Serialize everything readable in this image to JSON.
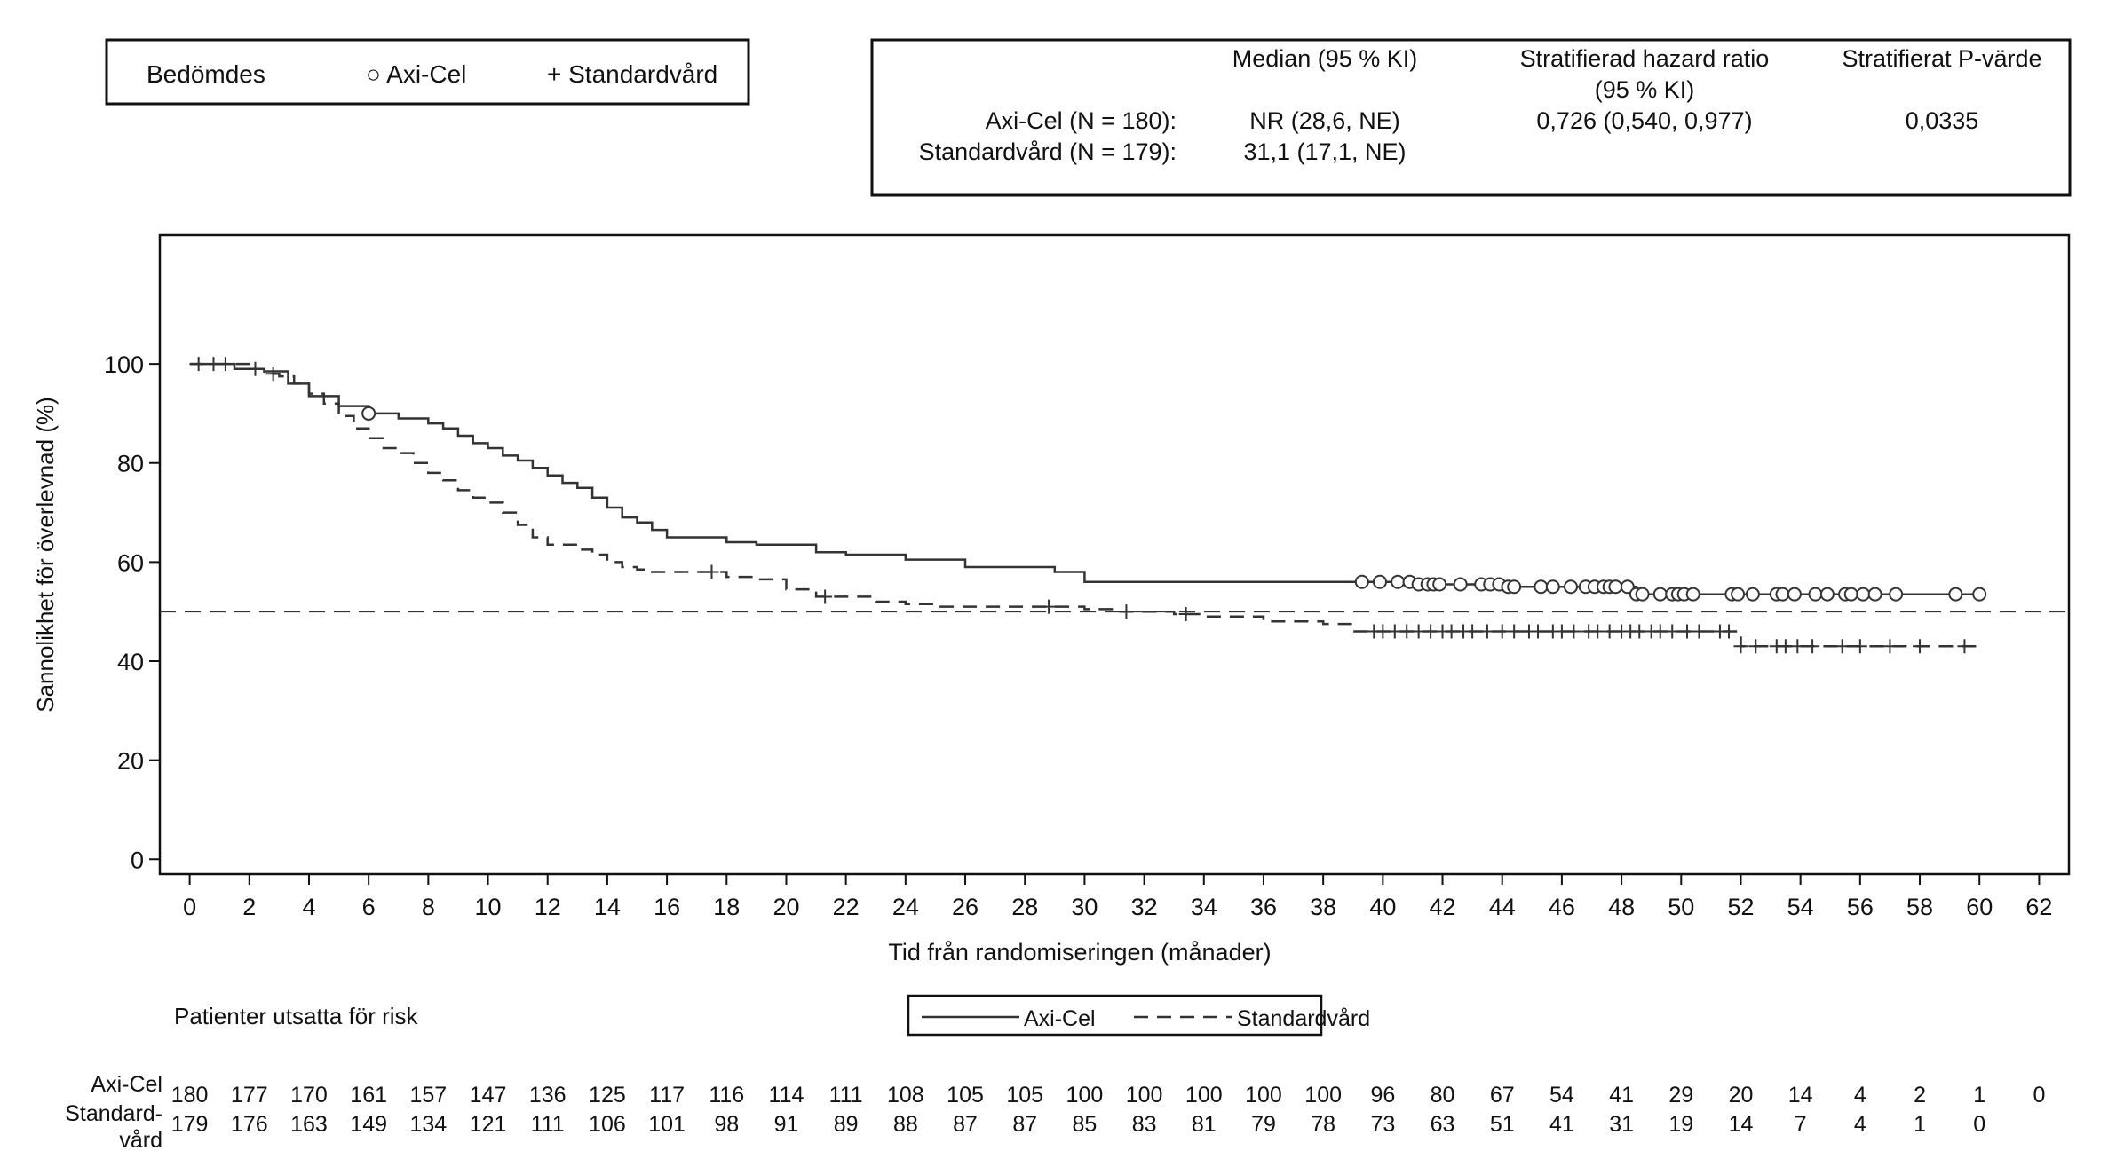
{
  "legend_box": {
    "title": "Bedömdes",
    "axicel_label": "○ Axi-Cel",
    "standard_label": "+ Standardvård"
  },
  "stats_table": {
    "headers": [
      "Median (95 % KI)",
      "Stratifierad hazard ratio",
      "(95 % KI)",
      "Stratifierat P-värde"
    ],
    "rows": [
      {
        "label": "Axi-Cel (N = 180):",
        "median": "NR (28,6, NE)",
        "hr": "0,726 (0,540, 0,977)",
        "p": "0,0335"
      },
      {
        "label": "Standardvård (N = 179):",
        "median": "31,1 (17,1, NE)",
        "hr": "",
        "p": ""
      }
    ]
  },
  "chart_data": {
    "type": "line",
    "title": "",
    "xlabel": "Tid från randomiseringen (månader)",
    "ylabel": "Sannolikhet för överlevnad (%)",
    "xlim": [
      -1,
      63
    ],
    "ylim": [
      -3,
      126
    ],
    "x_ticks": [
      0,
      2,
      4,
      6,
      8,
      10,
      12,
      14,
      16,
      18,
      20,
      22,
      24,
      26,
      28,
      30,
      32,
      34,
      36,
      38,
      40,
      42,
      44,
      46,
      48,
      50,
      52,
      54,
      56,
      58,
      60,
      62
    ],
    "y_ticks": [
      0,
      20,
      40,
      60,
      80,
      100
    ],
    "reference_line": 50,
    "series": [
      {
        "name": "Axi-Cel",
        "style": "solid",
        "censor_marker": "circle",
        "x": [
          0,
          1.5,
          2.5,
          3.3,
          4,
          5,
          6,
          7,
          8,
          8.5,
          9,
          9.5,
          10,
          10.5,
          11,
          11.5,
          12,
          12.5,
          13,
          13.5,
          14,
          14.5,
          15,
          15.5,
          16,
          17,
          18,
          19,
          20,
          21,
          22,
          23,
          24,
          25,
          26,
          27,
          28,
          29,
          30,
          31,
          35,
          39,
          40,
          41,
          42,
          43,
          44,
          45,
          46,
          47,
          48,
          48.5,
          49,
          50,
          51,
          52,
          53,
          54,
          55,
          56,
          57,
          58,
          59,
          60
        ],
        "y": [
          100,
          99,
          98.5,
          96,
          93.5,
          91.5,
          90,
          89,
          88,
          87,
          85.5,
          84,
          83,
          81.5,
          80.5,
          79,
          77.5,
          76,
          75,
          73,
          71,
          69,
          68,
          66.5,
          65,
          65,
          64,
          63.5,
          63.5,
          62,
          61.5,
          61.5,
          60.5,
          60.5,
          59,
          59,
          59,
          58,
          56,
          56,
          56,
          56,
          56,
          55.5,
          55.5,
          55.5,
          55,
          55,
          55,
          55,
          55,
          53.5,
          53.5,
          53.5,
          53.5,
          53.5,
          53.5,
          53.5,
          53.5,
          53.5,
          53.5,
          53.5,
          53.5,
          53.5
        ],
        "censor_times": [
          6,
          39.3,
          39.9,
          40.5,
          40.9,
          41.2,
          41.5,
          41.7,
          41.9,
          42.6,
          43.3,
          43.6,
          43.9,
          44.2,
          44.4,
          45.3,
          45.7,
          46.3,
          46.8,
          47.1,
          47.4,
          47.6,
          47.8,
          48.2,
          48.5,
          48.7,
          49.3,
          49.7,
          49.9,
          50.1,
          50.4,
          51.7,
          51.9,
          52.4,
          53.2,
          53.4,
          53.8,
          54.5,
          54.9,
          55.5,
          55.7,
          56.1,
          56.5,
          57.2,
          59.2,
          60
        ]
      },
      {
        "name": "Standardvård",
        "style": "dashed",
        "censor_marker": "plus",
        "x": [
          0,
          0.5,
          1.5,
          2,
          2.5,
          3,
          3.5,
          4,
          4.5,
          5,
          5.5,
          6,
          6.5,
          7,
          7.5,
          8,
          8.5,
          9,
          9.5,
          10,
          10.5,
          11,
          11.5,
          12,
          12.5,
          13,
          13.5,
          14,
          14.5,
          15,
          15.5,
          16,
          17,
          18,
          19,
          20,
          21,
          22,
          23,
          24,
          25,
          26,
          27,
          28,
          29,
          30,
          31,
          32,
          33,
          34,
          35,
          36,
          37,
          38,
          39,
          40,
          41,
          42,
          43,
          44,
          45,
          46,
          47,
          48,
          49,
          50,
          51,
          52,
          53,
          54,
          55,
          56,
          57,
          58,
          59,
          60
        ],
        "y": [
          100,
          100,
          100,
          99,
          98,
          97.5,
          96,
          94,
          92,
          89.5,
          87,
          85,
          83,
          82,
          80,
          78,
          76.5,
          74.5,
          73,
          72,
          70,
          67.5,
          65,
          63.5,
          63.5,
          62.5,
          61.5,
          60,
          59,
          58.5,
          58,
          58,
          58,
          57,
          56.5,
          54.5,
          53,
          53,
          52,
          51.5,
          51,
          51,
          51,
          51,
          51,
          50.5,
          50,
          50,
          49.5,
          49,
          49,
          48,
          48,
          47.5,
          46,
          46,
          46,
          46,
          46,
          46,
          46,
          46,
          46,
          46,
          46,
          46,
          46,
          43,
          43,
          43,
          43,
          43,
          43,
          43,
          43,
          43
        ],
        "censor_times": [
          0.3,
          0.8,
          1.2,
          2.2,
          2.8,
          17.5,
          21.3,
          28.8,
          31.4,
          33.4,
          39.7,
          40,
          40.4,
          40.8,
          41.2,
          41.6,
          42,
          42.3,
          42.7,
          43,
          43.5,
          44,
          44.4,
          44.9,
          45.2,
          45.7,
          46,
          46.4,
          46.9,
          47.2,
          47.6,
          48,
          48.3,
          48.6,
          49,
          49.3,
          49.7,
          50.2,
          50.6,
          51.3,
          51.6,
          52,
          52.5,
          53.2,
          53.5,
          53.9,
          54.4,
          55.4,
          56,
          57,
          58,
          59.5
        ]
      }
    ],
    "legend": [
      "Axi-Cel",
      "Standardvård"
    ],
    "legend_position": "bottom-center"
  },
  "risk_table": {
    "title": "Patienter utsatta för risk",
    "rows": [
      {
        "label": "Axi-Cel",
        "values": [
          180,
          177,
          170,
          161,
          157,
          147,
          136,
          125,
          117,
          116,
          114,
          111,
          108,
          105,
          105,
          100,
          100,
          100,
          100,
          100,
          96,
          80,
          67,
          54,
          41,
          29,
          20,
          14,
          4,
          2,
          1,
          0
        ]
      },
      {
        "label": "Standard-|vård",
        "values": [
          179,
          176,
          163,
          149,
          134,
          121,
          111,
          106,
          101,
          98,
          91,
          89,
          88,
          87,
          87,
          85,
          83,
          81,
          79,
          78,
          73,
          63,
          51,
          41,
          31,
          19,
          14,
          7,
          4,
          1,
          0
        ]
      }
    ]
  }
}
